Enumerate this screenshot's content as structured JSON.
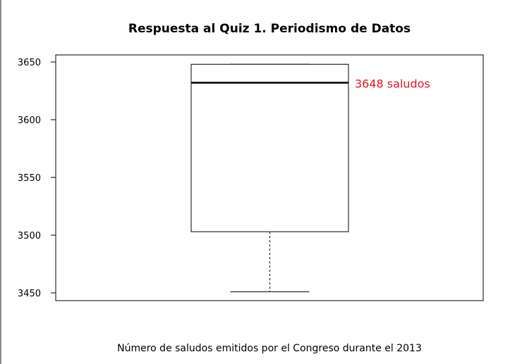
{
  "chart_data": {
    "type": "boxplot",
    "title": "Respuesta al Quiz 1. Periodismo de Datos",
    "xlabel": "Número de saludos emitidos por el Congreso durante el 2013",
    "ylabel": "",
    "ylim": [
      3440,
      3655
    ],
    "yticks": [
      3450,
      3500,
      3550,
      3600,
      3650
    ],
    "ytick_labels": [
      "3450",
      "3500",
      "3550",
      "3600",
      "3650"
    ],
    "box": {
      "min": 3451,
      "q1": 3503,
      "median": 3632,
      "q3": 3648,
      "max": 3648
    },
    "annotation": {
      "text": "3648 saludos",
      "color": "#e8141c"
    },
    "grid": false
  }
}
